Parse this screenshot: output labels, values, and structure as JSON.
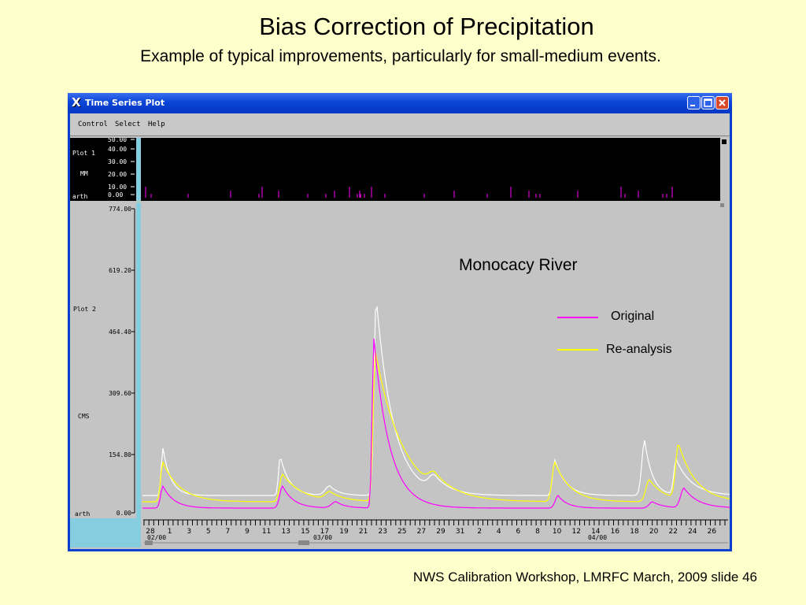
{
  "slide": {
    "title": "Bias Correction of Precipitation",
    "subtitle": "Example of typical improvements, particularly for small-medium events.",
    "footer": "NWS Calibration Workshop, LMRFC March, 2009 slide 46"
  },
  "window": {
    "title": "Time Series Plot",
    "menu": [
      "Control",
      "Select",
      "Help"
    ]
  },
  "plot1": {
    "label": "Plot 1",
    "units": "MM",
    "source": "arth",
    "ticks": [
      "50.00",
      "40.00",
      "30.00",
      "20.00",
      "10.00",
      "0.00"
    ]
  },
  "plot2": {
    "label": "Plot 2",
    "units": "CMS",
    "source": "arth",
    "ticks": [
      "774.00",
      "619.20",
      "464.40",
      "309.60",
      "154.80",
      "0.00"
    ]
  },
  "time_axis": {
    "day_labels": [
      "28",
      "1",
      "3",
      "5",
      "7",
      "9",
      "11",
      "13",
      "15",
      "17",
      "19",
      "21",
      "23",
      "25",
      "27",
      "29",
      "31",
      "2",
      "4",
      "6",
      "8",
      "10",
      "12",
      "14",
      "16",
      "18",
      "20",
      "22",
      "24",
      "26"
    ],
    "month_labels": [
      "02/00",
      "03/00",
      "04/00"
    ]
  },
  "legend": {
    "title": "Monocacy River",
    "items": [
      {
        "label": "Original",
        "color": "#ff00ff"
      },
      {
        "label": "Re-analysis",
        "color": "#ffff00"
      }
    ]
  },
  "colors": {
    "slide_bg": "#ffffcc",
    "window_frame": "#0a3fd0",
    "observed_line": "#ffffff",
    "original_line": "#ff00ff",
    "reanalysis_line": "#ffff00",
    "axis_strip": "#87cde0"
  }
}
